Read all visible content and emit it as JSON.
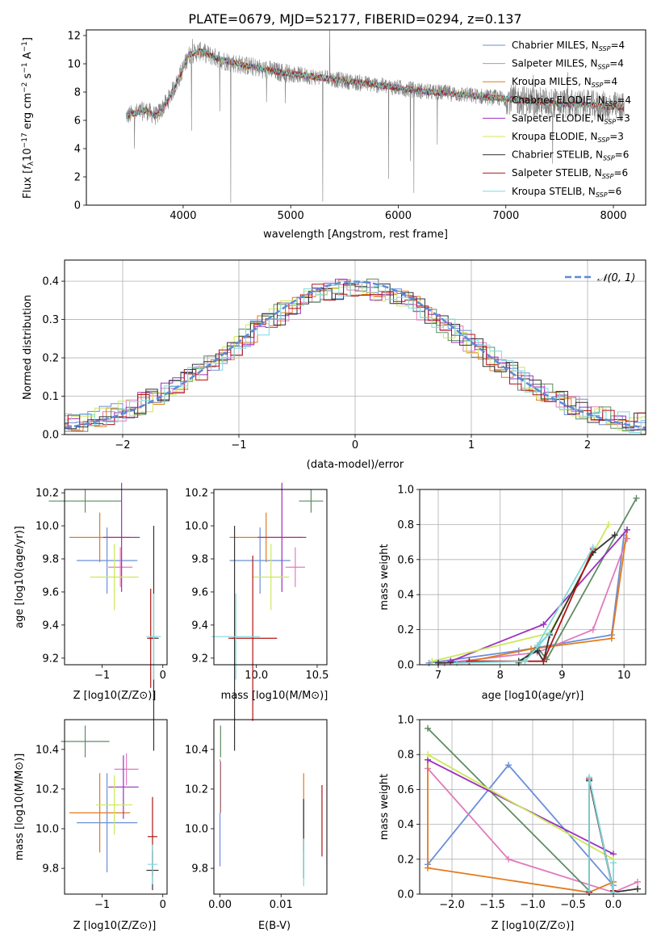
{
  "figure": {
    "title": "PLATE=0679, MJD=52177, FIBERID=0294, z=0.137"
  },
  "chart_data": [
    {
      "id": "spectrum",
      "type": "line",
      "xlabel": "wavelength [Angstrom, rest frame]",
      "ylabel_parts": [
        "Flux [",
        "f",
        "λ",
        "10",
        "−17",
        " erg cm",
        "−2",
        " s",
        "−1",
        " A",
        "−1",
        "]"
      ],
      "xlim": [
        3100,
        8300
      ],
      "ylim": [
        0,
        12.4
      ],
      "xticks": [
        4000,
        5000,
        6000,
        7000,
        8000
      ],
      "xtick_labels": [
        "4000",
        "5000",
        "6000",
        "7000",
        "8000"
      ],
      "yticks": [
        0,
        2,
        4,
        6,
        8,
        10,
        12
      ],
      "ytick_labels": [
        "0",
        "2",
        "4",
        "6",
        "8",
        "10",
        "12"
      ],
      "grid": false,
      "legend_position": "top-right",
      "data_x_range": [
        3470,
        8100
      ],
      "continuum_knots": {
        "x": [
          3470,
          3550,
          3650,
          3750,
          3850,
          3950,
          4050,
          4150,
          4250,
          4350,
          4500,
          4700,
          4900,
          5100,
          5300,
          5500,
          5700,
          5900,
          6100,
          6300,
          6500,
          6700,
          6900,
          7100,
          7300,
          7500,
          7700,
          7900,
          8100
        ],
        "y": [
          6.3,
          6.5,
          6.7,
          6.3,
          7.3,
          8.8,
          10.6,
          10.9,
          10.6,
          10.3,
          10.0,
          9.7,
          9.4,
          9.2,
          9.0,
          8.8,
          8.6,
          8.4,
          8.2,
          8.0,
          7.9,
          7.75,
          7.6,
          7.45,
          7.3,
          7.2,
          7.1,
          7.0,
          6.9
        ]
      },
      "series": [
        {
          "name": "Chabrier MILES",
          "nssp": "4",
          "color": "#6a8fd8"
        },
        {
          "name": "Salpeter MILES",
          "nssp": "4",
          "color": "#e07bbd"
        },
        {
          "name": "Kroupa MILES",
          "nssp": "4",
          "color": "#e37a1d"
        },
        {
          "name": "Chabrier ELODIE",
          "nssp": "4",
          "color": "#5f8b63"
        },
        {
          "name": "Salpeter ELODIE",
          "nssp": "3",
          "color": "#9b30c0"
        },
        {
          "name": "Kroupa ELODIE",
          "nssp": "3",
          "color": "#cce85a"
        },
        {
          "name": "Chabrier STELIB",
          "nssp": "6",
          "color": "#333333"
        },
        {
          "name": "Salpeter STELIB",
          "nssp": "6",
          "color": "#b01515"
        },
        {
          "name": "Kroupa STELIB",
          "nssp": "6",
          "color": "#7ed9de"
        }
      ],
      "observed_color": "#808080"
    },
    {
      "id": "residuals",
      "type": "histogram",
      "xlabel": "(data-model)/error",
      "ylabel": "Normed distribution",
      "xlim": [
        -2.5,
        2.5
      ],
      "ylim": [
        0,
        0.455
      ],
      "xticks": [
        -2,
        -1,
        0,
        1,
        2
      ],
      "xtick_labels": [
        "−2",
        "−1",
        "0",
        "1",
        "2"
      ],
      "yticks": [
        0.0,
        0.1,
        0.2,
        0.3,
        0.4
      ],
      "ytick_labels": [
        "0.0",
        "0.1",
        "0.2",
        "0.3",
        "0.4"
      ],
      "grid": true,
      "bin_width": 0.1,
      "legend_label": "𝒩(0, 1)",
      "legend_position": "top-right",
      "gaussian": {
        "mean": 0,
        "sigma": 1,
        "color": "#5b8bd9"
      },
      "series_colors": [
        "#6a8fd8",
        "#e07bbd",
        "#e37a1d",
        "#5f8b63",
        "#9b30c0",
        "#cce85a",
        "#333333",
        "#b01515",
        "#7ed9de"
      ]
    },
    {
      "id": "age-vs-z",
      "type": "errorbar",
      "xlabel": "Z [log10(Z/Z⊙)]",
      "ylabel": "age  [log10(age/yr)]",
      "xlim": [
        -1.62,
        0.07
      ],
      "ylim": [
        9.16,
        10.22
      ],
      "xticks": [
        -1,
        0
      ],
      "xtick_labels": [
        "−1",
        "0"
      ],
      "yticks": [
        9.2,
        9.4,
        9.6,
        9.8,
        10.0,
        10.2
      ],
      "ytick_labels": [
        "9.2",
        "9.4",
        "9.6",
        "9.8",
        "10.0",
        "10.2"
      ],
      "points": [
        {
          "x": -0.92,
          "xerr": 0.5,
          "y": 9.79,
          "yerr": 0.2,
          "color": "#6a8fd8"
        },
        {
          "x": -0.7,
          "xerr": 0.2,
          "y": 9.75,
          "yerr": 0.12,
          "color": "#e07bbd"
        },
        {
          "x": -1.04,
          "xerr": 0.5,
          "y": 9.93,
          "yerr": 0.15,
          "color": "#e37a1d"
        },
        {
          "x": -1.28,
          "xerr": 0.6,
          "y": 10.15,
          "yerr": 0.07,
          "color": "#5f8b63"
        },
        {
          "x": -0.68,
          "xerr": 0.3,
          "y": 9.93,
          "yerr": 0.33,
          "color": "#9b30c0"
        },
        {
          "x": -0.8,
          "xerr": 0.4,
          "y": 9.69,
          "yerr": 0.2,
          "color": "#cce85a"
        },
        {
          "x": -0.15,
          "xerr": 0.08,
          "y": 9.32,
          "yerr": 0.68,
          "color": "#333333"
        },
        {
          "x": -0.2,
          "xerr": 0.06,
          "y": 9.32,
          "yerr": 0.3,
          "color": "#b01515"
        },
        {
          "x": -0.15,
          "xerr": 0.12,
          "y": 9.33,
          "yerr": 0.26,
          "color": "#7ed9de"
        }
      ]
    },
    {
      "id": "age-vs-mass",
      "type": "errorbar",
      "xlabel": "mass [log10(M/M⊙)]",
      "ylabel": "",
      "xlim": [
        9.65,
        10.58
      ],
      "ylim": [
        9.16,
        10.22
      ],
      "xticks": [
        10.0,
        10.5
      ],
      "xtick_labels": [
        "10.0",
        "10.5"
      ],
      "yticks": [
        9.2,
        9.4,
        9.6,
        9.8,
        10.0,
        10.2
      ],
      "ytick_labels": [
        "9.2",
        "9.4",
        "9.6",
        "9.8",
        "10.0",
        "10.2"
      ],
      "points": [
        {
          "x": 10.03,
          "xerr": 0.25,
          "y": 9.79,
          "yerr": 0.2,
          "color": "#6a8fd8"
        },
        {
          "x": 10.32,
          "xerr": 0.08,
          "y": 9.75,
          "yerr": 0.12,
          "color": "#e07bbd"
        },
        {
          "x": 10.08,
          "xerr": 0.3,
          "y": 9.93,
          "yerr": 0.15,
          "color": "#e37a1d"
        },
        {
          "x": 10.45,
          "xerr": 0.1,
          "y": 10.15,
          "yerr": 0.07,
          "color": "#5f8b63"
        },
        {
          "x": 10.21,
          "xerr": 0.2,
          "y": 9.93,
          "yerr": 0.33,
          "color": "#9b30c0"
        },
        {
          "x": 10.12,
          "xerr": 0.15,
          "y": 9.69,
          "yerr": 0.2,
          "color": "#cce85a"
        },
        {
          "x": 9.82,
          "xerr": 0.02,
          "y": 9.32,
          "yerr": 0.68,
          "color": "#333333"
        },
        {
          "x": 9.97,
          "xerr": 0.2,
          "y": 9.32,
          "yerr": 0.5,
          "color": "#b01515"
        },
        {
          "x": 9.83,
          "xerr": 0.2,
          "y": 9.33,
          "yerr": 0.26,
          "color": "#7ed9de"
        }
      ]
    },
    {
      "id": "weight-vs-age",
      "type": "line",
      "xlabel": "age  [log10(age/yr)]",
      "ylabel": "mass weight",
      "xlim": [
        6.7,
        10.35
      ],
      "ylim": [
        0,
        1.0
      ],
      "xticks": [
        7,
        8,
        9,
        10
      ],
      "xtick_labels": [
        "7",
        "8",
        "9",
        "10"
      ],
      "yticks": [
        0.0,
        0.2,
        0.4,
        0.6,
        0.8,
        1.0
      ],
      "ytick_labels": [
        "0.0",
        "0.2",
        "0.4",
        "0.6",
        "0.8",
        "1.0"
      ],
      "grid": true,
      "series": [
        {
          "color": "#6a8fd8",
          "x": [
            6.85,
            8.3,
            9.8,
            10.0
          ],
          "y": [
            0.01,
            0.08,
            0.17,
            0.74
          ]
        },
        {
          "color": "#e07bbd",
          "x": [
            7.1,
            8.6,
            9.5,
            10.05
          ],
          "y": [
            0.01,
            0.07,
            0.2,
            0.72
          ]
        },
        {
          "color": "#e37a1d",
          "x": [
            7.5,
            8.5,
            9.8,
            10.05
          ],
          "y": [
            0.02,
            0.09,
            0.15,
            0.77
          ]
        },
        {
          "color": "#5f8b63",
          "x": [
            8.3,
            8.6,
            8.75,
            10.2
          ],
          "y": [
            0.01,
            0.1,
            0.03,
            0.95
          ]
        },
        {
          "color": "#9b30c0",
          "x": [
            7.2,
            8.7,
            10.05
          ],
          "y": [
            0.02,
            0.23,
            0.77
          ]
        },
        {
          "color": "#cce85a",
          "x": [
            6.9,
            8.8,
            9.75
          ],
          "y": [
            0.02,
            0.18,
            0.8
          ]
        },
        {
          "color": "#333333",
          "x": [
            7.0,
            8.3,
            8.6,
            8.7,
            8.8,
            9.5,
            9.85
          ],
          "y": [
            0.01,
            0.02,
            0.08,
            0.02,
            0.17,
            0.64,
            0.74
          ]
        },
        {
          "color": "#b01515",
          "x": [
            7.5,
            8.7,
            9.5
          ],
          "y": [
            0.02,
            0.02,
            0.66
          ]
        },
        {
          "color": "#7ed9de",
          "x": [
            7.3,
            8.4,
            8.8,
            8.6,
            9.5
          ],
          "y": [
            0.01,
            0.02,
            0.18,
            0.11,
            0.67
          ]
        }
      ]
    },
    {
      "id": "mass-vs-z",
      "type": "errorbar",
      "xlabel": "Z [log10(Z/Z⊙)]",
      "ylabel": "mass [log10(M/M⊙)]",
      "xlim": [
        -1.62,
        0.07
      ],
      "ylim": [
        9.67,
        10.55
      ],
      "xticks": [
        -1,
        0
      ],
      "xtick_labels": [
        "−1",
        "0"
      ],
      "yticks": [
        9.8,
        10.0,
        10.2,
        10.4
      ],
      "ytick_labels": [
        "9.8",
        "10.0",
        "10.2",
        "10.4"
      ],
      "points": [
        {
          "x": -0.92,
          "xerr": 0.5,
          "y": 10.03,
          "yerr": 0.25,
          "color": "#6a8fd8"
        },
        {
          "x": -0.6,
          "xerr": 0.2,
          "y": 10.3,
          "yerr": 0.08,
          "color": "#e07bbd"
        },
        {
          "x": -1.04,
          "xerr": 0.5,
          "y": 10.08,
          "yerr": 0.2,
          "color": "#e37a1d"
        },
        {
          "x": -1.28,
          "xerr": 0.4,
          "y": 10.44,
          "yerr": 0.08,
          "color": "#5f8b63"
        },
        {
          "x": -0.65,
          "xerr": 0.25,
          "y": 10.21,
          "yerr": 0.16,
          "color": "#9b30c0"
        },
        {
          "x": -0.8,
          "xerr": 0.3,
          "y": 10.12,
          "yerr": 0.15,
          "color": "#cce85a"
        },
        {
          "x": -0.17,
          "xerr": 0.1,
          "y": 9.79,
          "yerr": 0.1,
          "color": "#333333"
        },
        {
          "x": -0.17,
          "xerr": 0.08,
          "y": 9.96,
          "yerr": 0.2,
          "color": "#b01515"
        },
        {
          "x": -0.17,
          "xerr": 0.08,
          "y": 9.82,
          "yerr": 0.1,
          "color": "#7ed9de"
        }
      ]
    },
    {
      "id": "mass-vs-ebv",
      "type": "errorbar",
      "xlabel": "E(B-V)",
      "ylabel": "",
      "xlim": [
        -0.001,
        0.0175
      ],
      "ylim": [
        9.67,
        10.55
      ],
      "xticks": [
        0.0,
        0.01
      ],
      "xtick_labels": [
        "0.00",
        "0.01"
      ],
      "yticks": [
        9.8,
        10.0,
        10.2,
        10.4
      ],
      "ytick_labels": [
        "9.8",
        "10.0",
        "10.2",
        "10.4"
      ],
      "points": [
        {
          "x": 0.0,
          "xerr": 0,
          "y": 10.03,
          "yerr": 0.22,
          "color": "#6a8fd8"
        },
        {
          "x": 0.0,
          "xerr": 0,
          "y": 10.3,
          "yerr": 0.05,
          "color": "#e07bbd"
        },
        {
          "x": 0.0137,
          "xerr": 0,
          "y": 10.08,
          "yerr": 0.2,
          "color": "#e37a1d"
        },
        {
          "x": 0.0001,
          "xerr": 0,
          "y": 10.44,
          "yerr": 0.08,
          "color": "#5f8b63"
        },
        {
          "x": 0.0001,
          "xerr": 0,
          "y": 10.21,
          "yerr": 0.13,
          "color": "#9b30c0"
        },
        {
          "x": 0.0,
          "xerr": 0,
          "y": 10.21,
          "yerr": 0.13,
          "color": "#cce85a"
        },
        {
          "x": 0.0137,
          "xerr": 0,
          "y": 9.95,
          "yerr": 0.2,
          "color": "#333333"
        },
        {
          "x": 0.0167,
          "xerr": 0,
          "y": 10.04,
          "yerr": 0.18,
          "color": "#b01515"
        },
        {
          "x": 0.0137,
          "xerr": 0,
          "y": 9.83,
          "yerr": 0.12,
          "color": "#7ed9de"
        }
      ]
    },
    {
      "id": "weight-vs-z",
      "type": "line",
      "xlabel": "Z [log10(Z/Z⊙)]",
      "ylabel": "mass weight",
      "xlim": [
        -2.4,
        0.4
      ],
      "ylim": [
        0,
        1.0
      ],
      "xticks": [
        -2.0,
        -1.5,
        -1.0,
        -0.5,
        0.0
      ],
      "xtick_labels": [
        "−2.0",
        "−1.5",
        "−1.0",
        "−0.5",
        "0.0"
      ],
      "yticks": [
        0.0,
        0.2,
        0.4,
        0.6,
        0.8,
        1.0
      ],
      "ytick_labels": [
        "0.0",
        "0.2",
        "0.4",
        "0.6",
        "0.8",
        "1.0"
      ],
      "grid": true,
      "series": [
        {
          "color": "#6a8fd8",
          "x": [
            -2.3,
            -1.3,
            0.0
          ],
          "y": [
            0.17,
            0.74,
            0.05
          ]
        },
        {
          "color": "#e07bbd",
          "x": [
            -2.3,
            -1.3,
            0.0,
            0.3
          ],
          "y": [
            0.72,
            0.2,
            0.01,
            0.07
          ]
        },
        {
          "color": "#e37a1d",
          "x": [
            -2.3,
            -2.3,
            -0.3,
            0.0
          ],
          "y": [
            0.77,
            0.15,
            0.01,
            0.07
          ]
        },
        {
          "color": "#5f8b63",
          "x": [
            -2.3,
            -0.3,
            -0.3,
            0.0
          ],
          "y": [
            0.95,
            0.02,
            0.65,
            0.02
          ]
        },
        {
          "color": "#9b30c0",
          "x": [
            -2.3,
            0.0
          ],
          "y": [
            0.77,
            0.23
          ]
        },
        {
          "color": "#cce85a",
          "x": [
            -2.3,
            0.0
          ],
          "y": [
            0.8,
            0.2
          ]
        },
        {
          "color": "#333333",
          "x": [
            -0.3,
            -0.3,
            0.0,
            0.3
          ],
          "y": [
            0.01,
            0.65,
            0.01,
            0.03
          ]
        },
        {
          "color": "#b01515",
          "x": [
            -0.3,
            -0.3,
            0.0
          ],
          "y": [
            0.01,
            0.66,
            0.02
          ]
        },
        {
          "color": "#7ed9de",
          "x": [
            -0.3,
            -0.3,
            0.0,
            0.0
          ],
          "y": [
            0.02,
            0.67,
            0.01,
            0.18
          ]
        }
      ]
    }
  ]
}
